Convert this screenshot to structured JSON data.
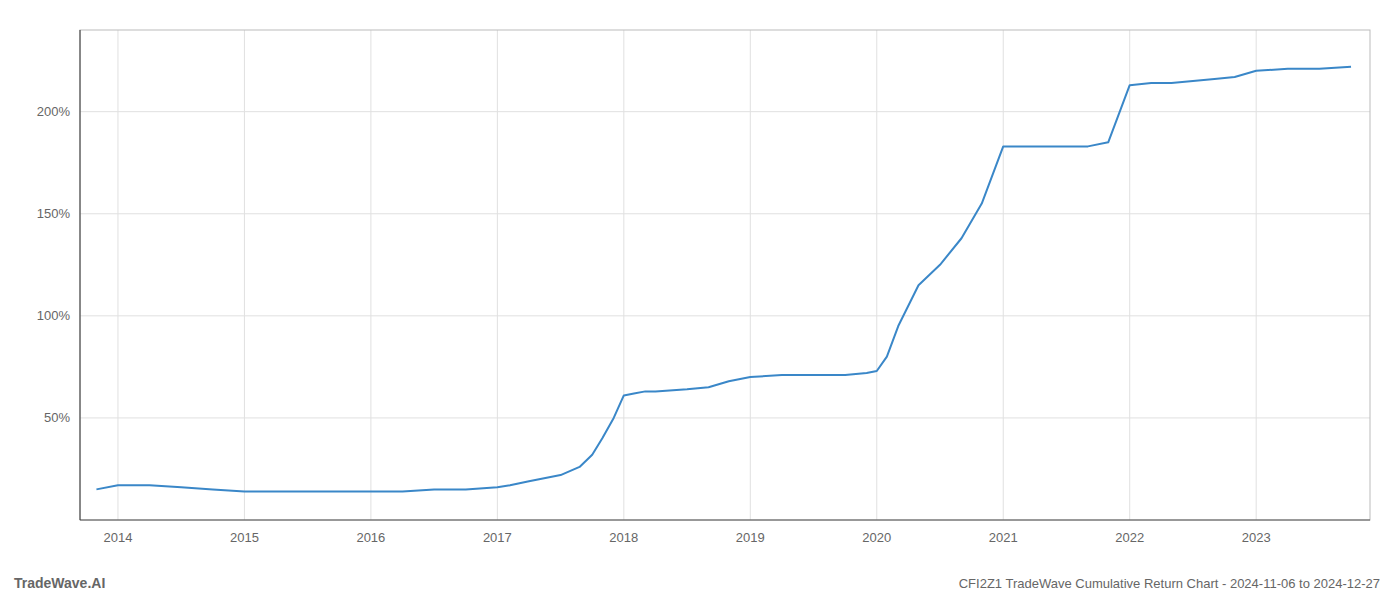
{
  "chart_data": {
    "type": "line",
    "title": "CFI2Z1 TradeWave Cumulative Return Chart - 2024-11-06 to 2024-12-27",
    "annotations": [
      "TradeWave.AI"
    ],
    "x": [
      2013.83,
      2014.0,
      2014.25,
      2014.5,
      2014.75,
      2015.0,
      2015.25,
      2015.5,
      2015.75,
      2016.0,
      2016.25,
      2016.5,
      2016.75,
      2017.0,
      2017.1,
      2017.25,
      2017.5,
      2017.65,
      2017.75,
      2017.83,
      2017.92,
      2018.0,
      2018.08,
      2018.17,
      2018.25,
      2018.5,
      2018.67,
      2018.83,
      2019.0,
      2019.25,
      2019.5,
      2019.75,
      2019.92,
      2020.0,
      2020.08,
      2020.17,
      2020.33,
      2020.5,
      2020.67,
      2020.83,
      2021.0,
      2021.17,
      2021.33,
      2021.5,
      2021.67,
      2021.83,
      2022.0,
      2022.17,
      2022.33,
      2022.5,
      2022.67,
      2022.83,
      2023.0,
      2023.25,
      2023.5,
      2023.75
    ],
    "values": [
      15,
      17,
      17,
      16,
      15,
      14,
      14,
      14,
      14,
      14,
      14,
      15,
      15,
      16,
      17,
      19,
      22,
      26,
      32,
      40,
      50,
      61,
      62,
      63,
      63,
      64,
      65,
      68,
      70,
      71,
      71,
      71,
      72,
      73,
      80,
      95,
      115,
      125,
      138,
      155,
      183,
      183,
      183,
      183,
      183,
      185,
      213,
      214,
      214,
      215,
      216,
      217,
      220,
      221,
      221,
      222
    ],
    "color": "#3a87c8",
    "xlim": [
      2013.7,
      2023.9
    ],
    "ylim": [
      0,
      240
    ],
    "xticks": [
      2014,
      2015,
      2016,
      2017,
      2018,
      2019,
      2020,
      2021,
      2022,
      2023
    ],
    "yticks": [
      {
        "value": 50,
        "label": "50%"
      },
      {
        "value": 100,
        "label": "100%"
      },
      {
        "value": 150,
        "label": "150%"
      },
      {
        "value": 200,
        "label": "200%"
      }
    ],
    "grid": true
  }
}
